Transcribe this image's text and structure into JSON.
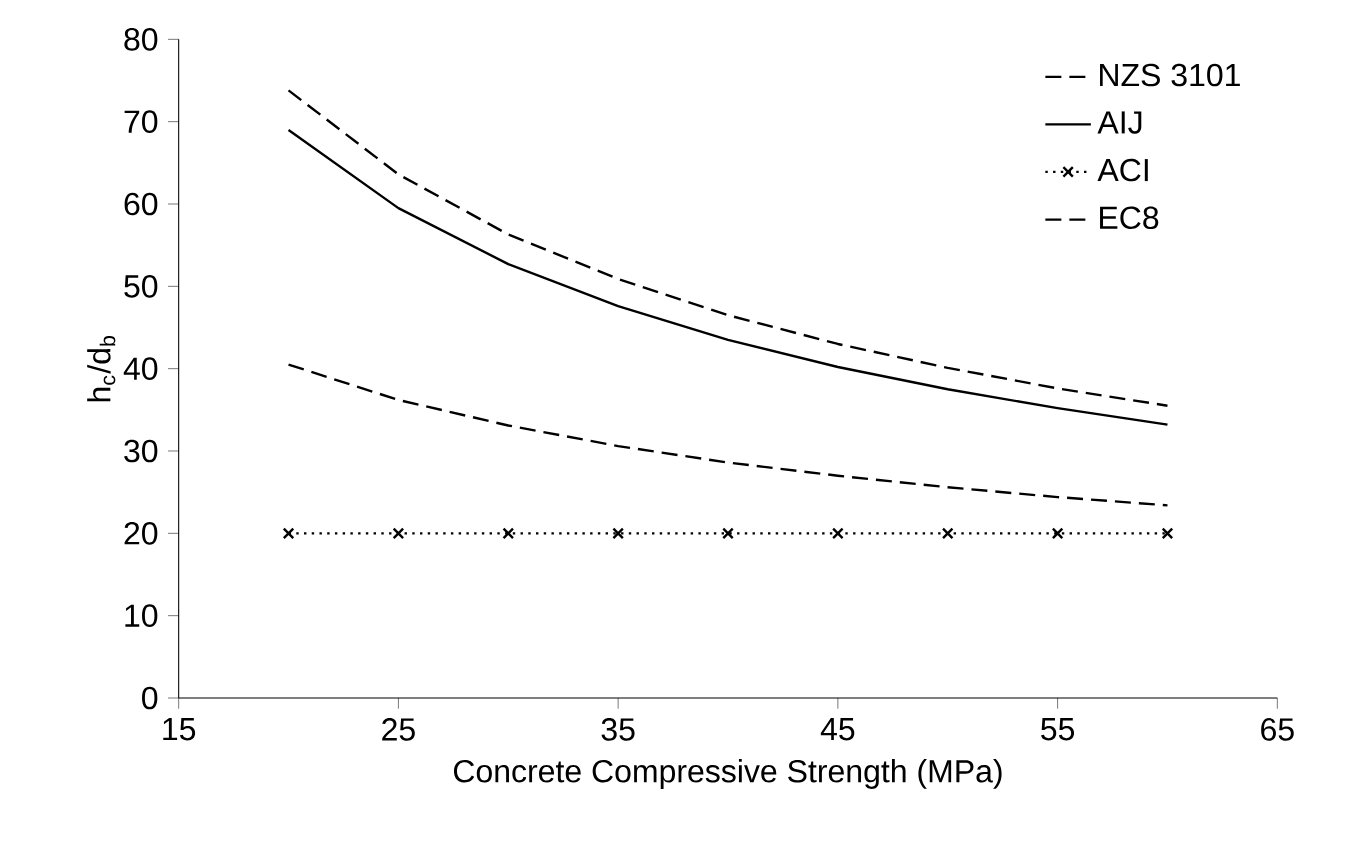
{
  "chart_data": {
    "type": "line",
    "xlabel": "Concrete Compressive Strength (MPa)",
    "ylabel": "h$_{c}$/d$_{b}$",
    "xlim": [
      15,
      65
    ],
    "xticks": [
      15,
      25,
      35,
      45,
      55,
      65
    ],
    "ylim": [
      0,
      80
    ],
    "yticks": [
      0,
      10,
      20,
      30,
      40,
      50,
      60,
      70,
      80
    ],
    "grid": false,
    "legend": "top right",
    "x": [
      20,
      25,
      30,
      35,
      40,
      45,
      50,
      55,
      60
    ],
    "series": [
      {
        "name": "NZS 3101",
        "color": "#000000",
        "line_style": "dashed",
        "marker": "none",
        "values": [
          40.5,
          36.2,
          33.1,
          30.6,
          28.6,
          27.0,
          25.6,
          24.4,
          23.4
        ]
      },
      {
        "name": "AIJ",
        "color": "#000000",
        "line_style": "solid",
        "marker": "none",
        "values": [
          69.0,
          59.5,
          52.7,
          47.6,
          43.5,
          40.2,
          37.5,
          35.2,
          33.2
        ]
      },
      {
        "name": "ACI",
        "color": "#000000",
        "line_style": "dotted",
        "marker": "cross",
        "values": [
          20,
          20,
          20,
          20,
          20,
          20,
          20,
          20,
          20
        ]
      },
      {
        "name": "EC8",
        "color": "#000000",
        "line_style": "dashed",
        "marker": "none",
        "values": [
          73.8,
          63.6,
          56.3,
          50.9,
          46.5,
          43.0,
          40.1,
          37.6,
          35.5
        ]
      }
    ]
  }
}
